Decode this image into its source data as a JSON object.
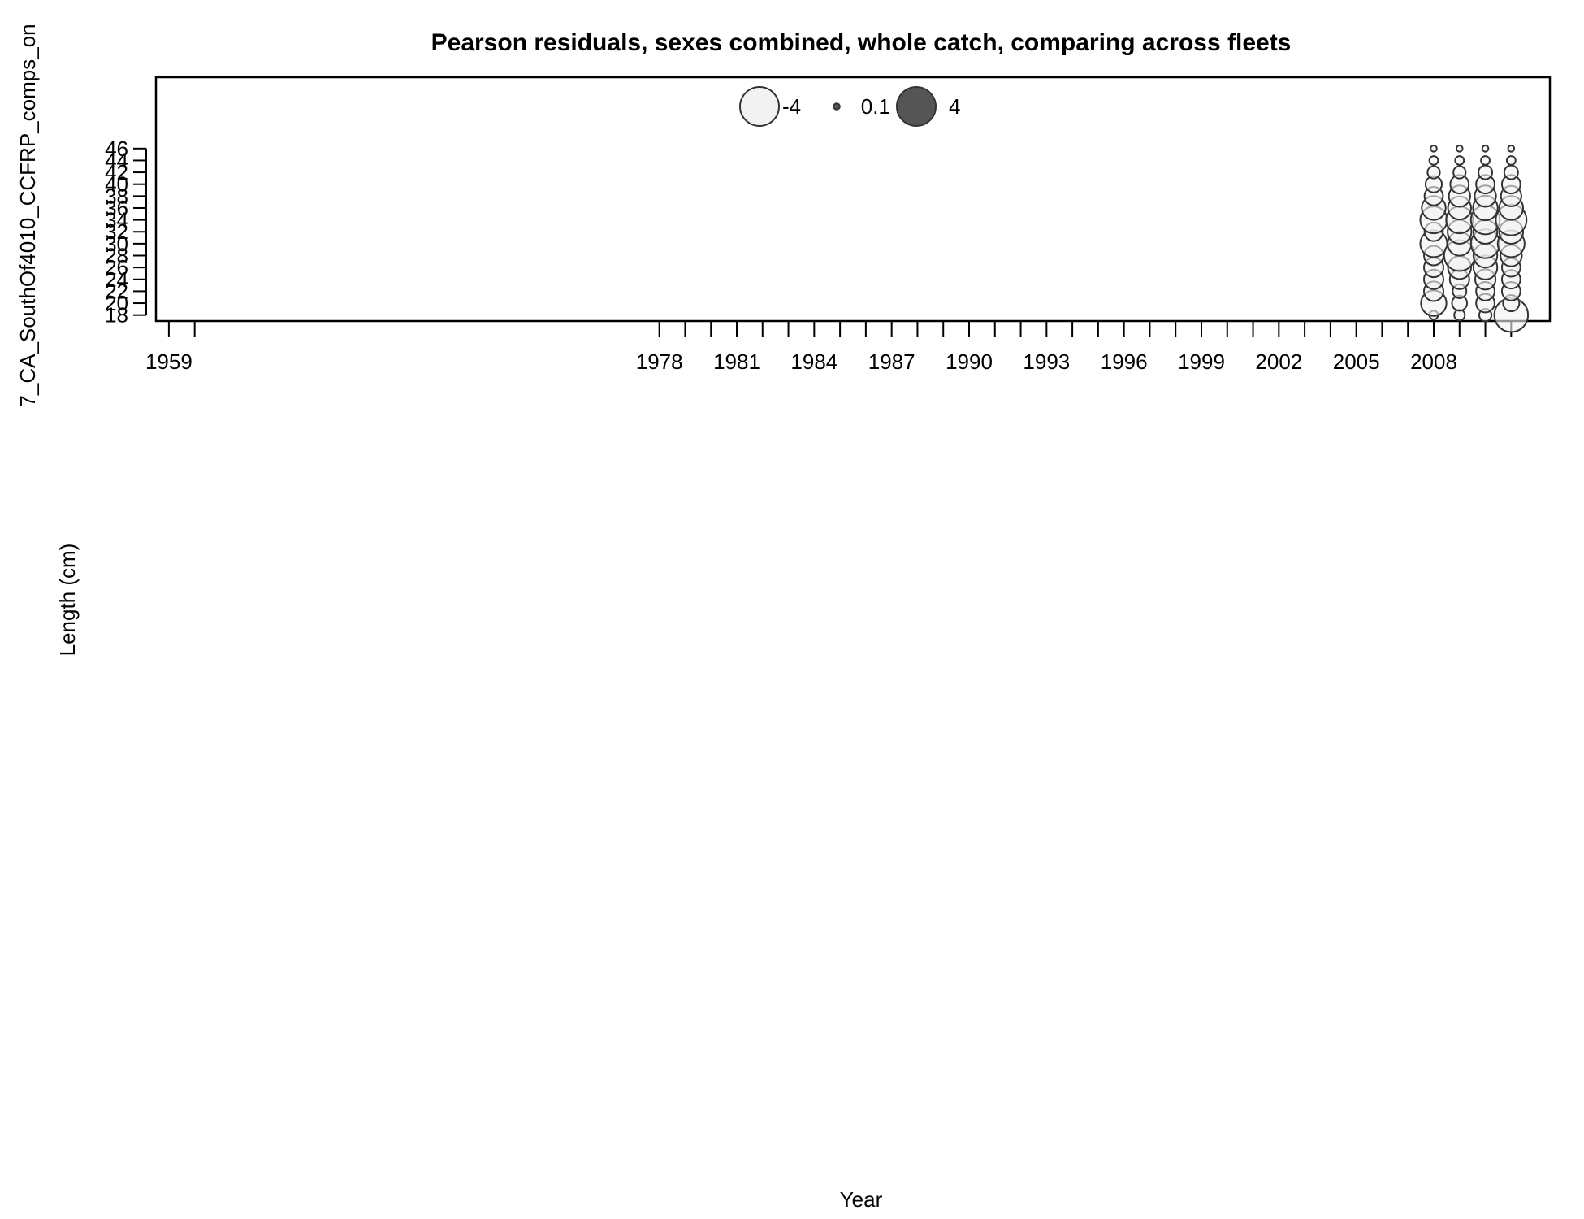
{
  "chart_data": {
    "type": "scatter",
    "title": "Pearson residuals, sexes combined, whole catch, comparing across fleets",
    "panel_label": "7_CA_SouthOf4010_CCFRP_comps_on",
    "xlabel": "Year",
    "ylabel": "Length (cm)",
    "x_ticks": [
      1959,
      1960,
      1978,
      1979,
      1980,
      1981,
      1982,
      1983,
      1984,
      1985,
      1986,
      1987,
      1988,
      1989,
      1990,
      1991,
      1992,
      1993,
      1994,
      1995,
      1996,
      1997,
      1998,
      1999,
      2000,
      2001,
      2002,
      2003,
      2004,
      2005,
      2006,
      2007,
      2008,
      2009,
      2010,
      2011
    ],
    "x_tick_labels": [
      "1959",
      "1978",
      "1981",
      "1984",
      "1987",
      "1990",
      "1993",
      "1996",
      "1999",
      "2002",
      "2005",
      "2008"
    ],
    "xlim": [
      1958.5,
      2012.5
    ],
    "y_ticks": [
      18,
      20,
      22,
      24,
      26,
      28,
      30,
      32,
      34,
      36,
      38,
      40,
      42,
      44,
      46
    ],
    "ylim": [
      17,
      58
    ],
    "grid": false,
    "legend": {
      "position": "top-center",
      "entries": [
        {
          "label": "-4",
          "value": -4,
          "fill": "#f2f2f2"
        },
        {
          "label": "0.1",
          "value": 0.1,
          "fill": "#555555"
        },
        {
          "label": "4",
          "value": 4,
          "fill": "#555555"
        }
      ]
    },
    "colors": {
      "negative_fill": "#f2f2f2",
      "positive_fill": "#555555",
      "stroke": "#333333"
    },
    "series": [
      {
        "x": 2008,
        "points": [
          [
            18,
            -0.2
          ],
          [
            20,
            -1.7
          ],
          [
            22,
            -1.0
          ],
          [
            24,
            -1.0
          ],
          [
            26,
            -1.0
          ],
          [
            28,
            -1.0
          ],
          [
            30,
            -1.9
          ],
          [
            32,
            -0.9
          ],
          [
            34,
            -1.9
          ],
          [
            36,
            -1.5
          ],
          [
            38,
            -0.9
          ],
          [
            40,
            -0.7
          ],
          [
            42,
            -0.4
          ],
          [
            44,
            -0.2
          ],
          [
            46,
            -0.1
          ]
        ]
      },
      {
        "x": 2009,
        "points": [
          [
            18,
            -0.3
          ],
          [
            20,
            -0.6
          ],
          [
            22,
            -0.5
          ],
          [
            24,
            -1.0
          ],
          [
            26,
            -1.4
          ],
          [
            28,
            -2.5
          ],
          [
            30,
            -1.5
          ],
          [
            32,
            -1.5
          ],
          [
            34,
            -1.9
          ],
          [
            36,
            -1.4
          ],
          [
            38,
            -1.2
          ],
          [
            40,
            -0.9
          ],
          [
            42,
            -0.4
          ],
          [
            44,
            -0.2
          ],
          [
            46,
            -0.1
          ]
        ]
      },
      {
        "x": 2010,
        "points": [
          [
            18,
            -0.4
          ],
          [
            20,
            -0.9
          ],
          [
            22,
            -0.9
          ],
          [
            24,
            -1.1
          ],
          [
            26,
            -1.5
          ],
          [
            28,
            -1.5
          ],
          [
            30,
            -2.2
          ],
          [
            32,
            -1.5
          ],
          [
            34,
            -2.2
          ],
          [
            36,
            -1.6
          ],
          [
            38,
            -1.2
          ],
          [
            40,
            -0.9
          ],
          [
            42,
            -0.5
          ],
          [
            44,
            -0.2
          ],
          [
            46,
            -0.1
          ]
        ]
      },
      {
        "x": 2011,
        "points": [
          [
            18,
            -3.0
          ],
          [
            20,
            -0.7
          ],
          [
            22,
            -0.9
          ],
          [
            24,
            -0.9
          ],
          [
            26,
            -0.9
          ],
          [
            28,
            -1.2
          ],
          [
            30,
            -1.9
          ],
          [
            32,
            -1.5
          ],
          [
            34,
            -2.5
          ],
          [
            36,
            -1.5
          ],
          [
            38,
            -1.1
          ],
          [
            40,
            -0.9
          ],
          [
            42,
            -0.5
          ],
          [
            44,
            -0.2
          ],
          [
            46,
            -0.1
          ]
        ]
      }
    ]
  }
}
